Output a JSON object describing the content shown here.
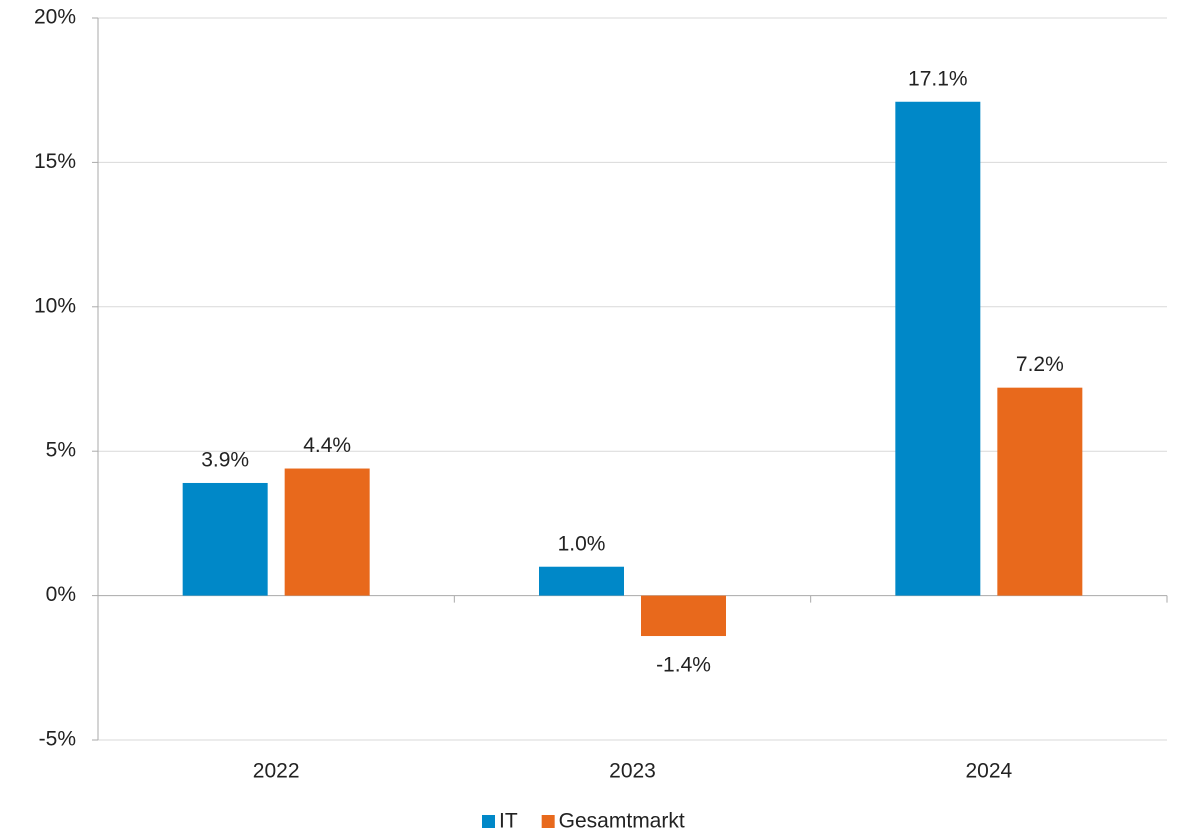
{
  "chart_data": {
    "type": "bar",
    "categories": [
      "2022",
      "2023",
      "2024"
    ],
    "series": [
      {
        "name": "IT",
        "color": "#0088c8",
        "values": [
          3.9,
          1.0,
          17.1
        ],
        "value_labels": [
          "3.9%",
          "1.0%",
          "17.1%"
        ]
      },
      {
        "name": "Gesamtmarkt",
        "color": "#e8691c",
        "values": [
          4.4,
          -1.4,
          7.2
        ],
        "value_labels": [
          "4.4%",
          "-1.4%",
          "7.2%"
        ]
      }
    ],
    "ylim": [
      -5,
      20
    ],
    "yticks": [
      {
        "value": -5,
        "label": "-5%"
      },
      {
        "value": 0,
        "label": "0%"
      },
      {
        "value": 5,
        "label": "5%"
      },
      {
        "value": 10,
        "label": "10%"
      },
      {
        "value": 15,
        "label": "15%"
      },
      {
        "value": 20,
        "label": "20%"
      }
    ],
    "grid": true,
    "legend": "bottom"
  }
}
